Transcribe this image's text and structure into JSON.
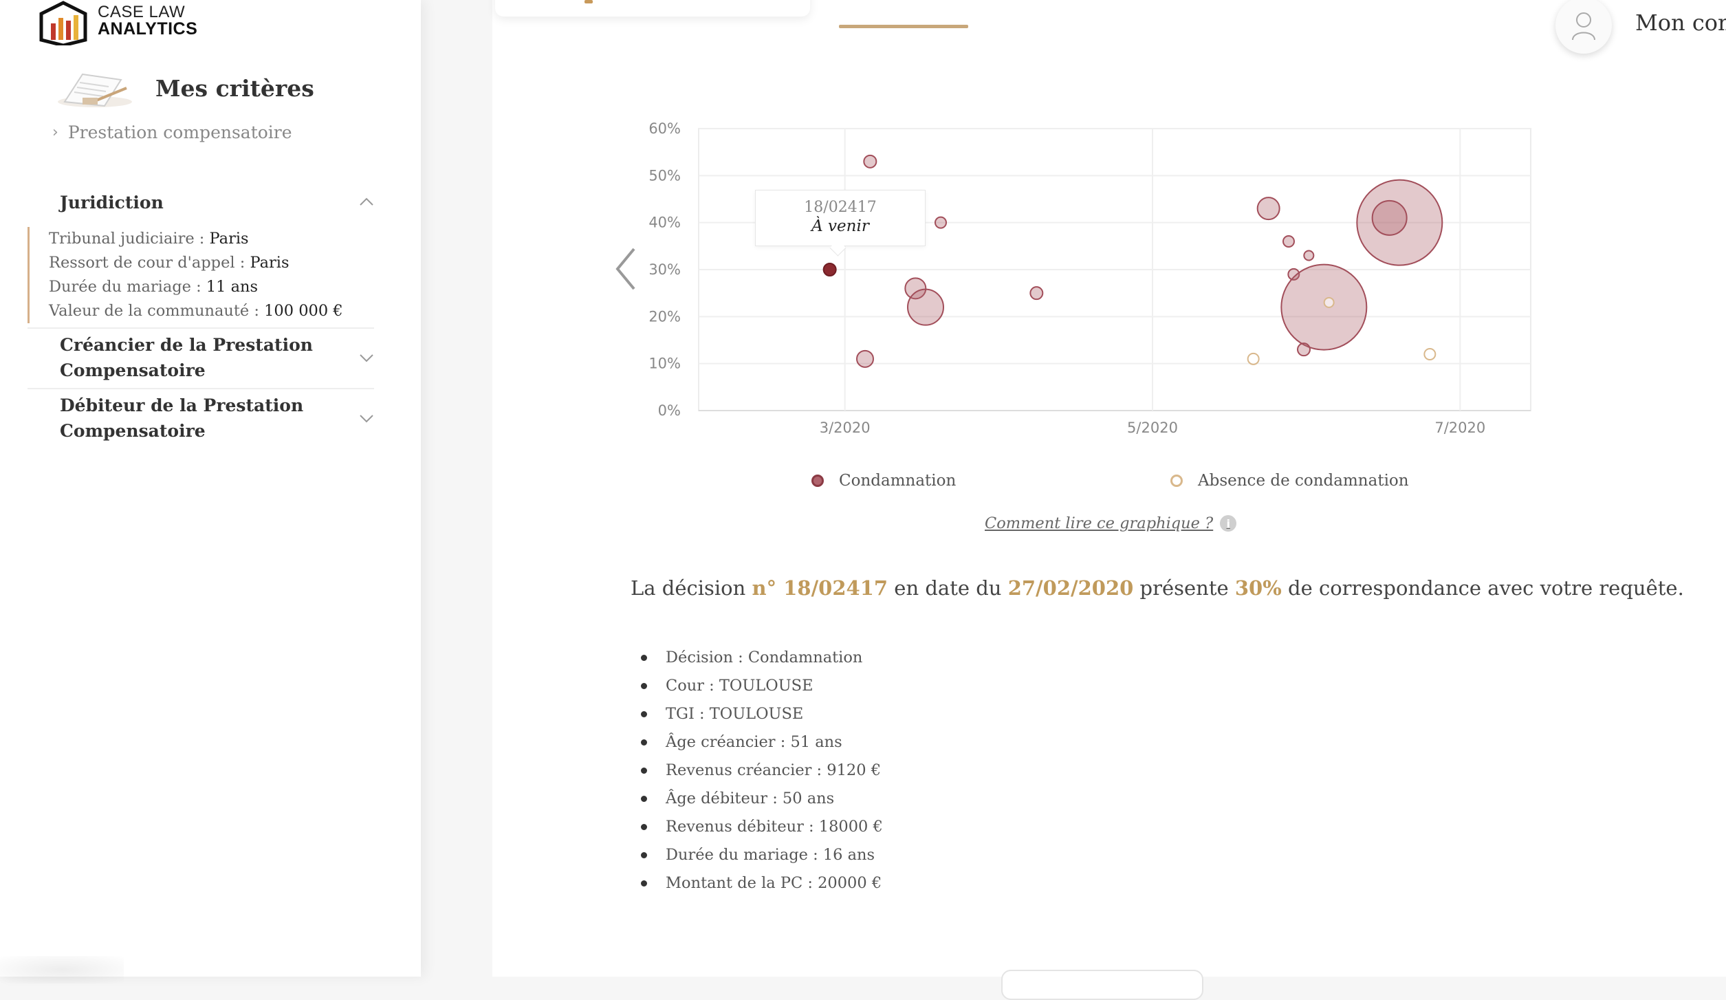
{
  "logo": {
    "line1": "CASE LAW",
    "line2": "ANALYTICS"
  },
  "sidebar": {
    "criteria_title": "Mes critères",
    "breadcrumb": "Prestation compensatoire",
    "sections": [
      {
        "title": "Juridiction",
        "expanded": true,
        "items": [
          {
            "label": "Tribunal judiciaire : ",
            "value": "Paris"
          },
          {
            "label": "Ressort de cour d'appel : ",
            "value": "Paris"
          },
          {
            "label": "Durée du mariage : ",
            "value": "11 ans"
          },
          {
            "label": "Valeur de la communauté : ",
            "value": "100 000 €"
          }
        ]
      },
      {
        "title_line1": "Créancier de la Prestation",
        "title_line2": "Compensatoire",
        "expanded": false
      },
      {
        "title_line1": "Débiteur de la Prestation",
        "title_line2": "Compensatoire",
        "expanded": false
      }
    ]
  },
  "header": {
    "account_label": "Mon com"
  },
  "chart_data": {
    "type": "scatter",
    "subtype": "bubble",
    "x_type": "date",
    "xlim": [
      "2020-02-01",
      "2020-07-15"
    ],
    "ylim": [
      0,
      60
    ],
    "y_unit": "%",
    "y_ticks": [
      0,
      10,
      20,
      30,
      40,
      50,
      60
    ],
    "y_tick_labels": [
      "0%",
      "10%",
      "20%",
      "30%",
      "40%",
      "50%",
      "60%"
    ],
    "x_ticks": [
      "2020-03-01",
      "2020-05-01",
      "2020-07-01"
    ],
    "x_tick_labels": [
      "3/2020",
      "5/2020",
      "7/2020"
    ],
    "grid": true,
    "legend_position": "bottom",
    "colors": {
      "condamnation": "#b0636d",
      "absence": "#d9b88c",
      "selected": "#8b2a30"
    },
    "series": [
      {
        "name": "Condamnation",
        "points": [
          {
            "x": "2020-03-06",
            "y": 53,
            "r": 9
          },
          {
            "x": "2020-03-12",
            "y": 42,
            "r": 14
          },
          {
            "x": "2020-03-20",
            "y": 40,
            "r": 8
          },
          {
            "x": "2020-03-15",
            "y": 26,
            "r": 15
          },
          {
            "x": "2020-03-17",
            "y": 22,
            "r": 26
          },
          {
            "x": "2020-03-05",
            "y": 11,
            "r": 12
          },
          {
            "x": "2020-04-08",
            "y": 25,
            "r": 9
          },
          {
            "x": "2020-05-24",
            "y": 43,
            "r": 16
          },
          {
            "x": "2020-05-28",
            "y": 36,
            "r": 8
          },
          {
            "x": "2020-06-01",
            "y": 33,
            "r": 7
          },
          {
            "x": "2020-05-29",
            "y": 29,
            "r": 8
          },
          {
            "x": "2020-06-04",
            "y": 22,
            "r": 62
          },
          {
            "x": "2020-06-19",
            "y": 40,
            "r": 62
          },
          {
            "x": "2020-06-17",
            "y": 41,
            "r": 25
          },
          {
            "x": "2020-05-31",
            "y": 13,
            "r": 9
          }
        ]
      },
      {
        "name": "Absence de condamnation",
        "points": [
          {
            "x": "2020-05-21",
            "y": 11,
            "r": 8
          },
          {
            "x": "2020-06-05",
            "y": 23,
            "r": 7
          },
          {
            "x": "2020-06-25",
            "y": 12,
            "r": 8
          }
        ]
      }
    ],
    "selected": {
      "x": "2020-02-27",
      "y": 30,
      "label": "18/02417",
      "status": "À venir"
    }
  },
  "how_to_read": "Comment lire ce graphique ?",
  "decision": {
    "prefix": "La décision",
    "number": "n° 18/02417",
    "mid1": "en date du",
    "date": "27/02/2020",
    "mid2": "présente",
    "match": "30%",
    "suffix": "de correspondance avec votre requête."
  },
  "details": [
    "Décision : Condamnation",
    "Cour : TOULOUSE",
    "TGI : TOULOUSE",
    "Âge créancier : 51 ans",
    "Revenus créancier : 9120 €",
    "Âge débiteur : 50 ans",
    "Revenus débiteur : 18000 €",
    "Durée du mariage : 16 ans",
    "Montant de la PC : 20000 €"
  ]
}
